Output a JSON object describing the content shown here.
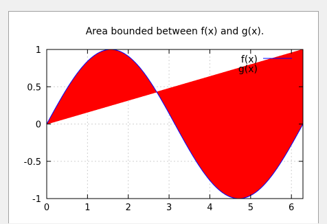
{
  "chart_data": {
    "type": "area",
    "title": "Area bounded between f(x) and g(x).",
    "xlabel": "",
    "ylabel": "",
    "xlim": [
      0,
      6.283
    ],
    "ylim": [
      -1,
      1
    ],
    "x_ticks": [
      "0",
      "1",
      "2",
      "3",
      "4",
      "5",
      "6"
    ],
    "y_ticks": [
      "1",
      "0.5",
      "0",
      "-0.5",
      "-1"
    ],
    "grid": true,
    "legend_position": "top-right",
    "series": [
      {
        "name": "f(x)",
        "expression": "sin(x)",
        "color": "#0000ff"
      },
      {
        "name": "g(x)",
        "expression": "x/(2π)",
        "color": "#ff0000"
      }
    ],
    "fill_between": {
      "color": "#ff0000"
    }
  }
}
